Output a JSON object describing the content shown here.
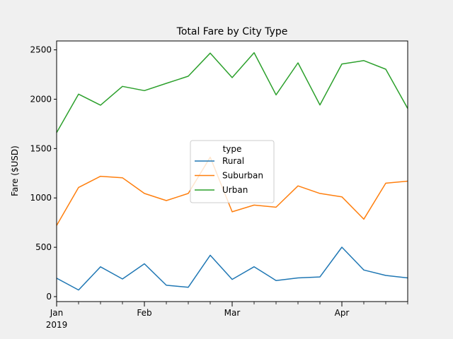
{
  "chart_data": {
    "type": "line",
    "title": "Total Fare by City Type",
    "xlabel": "",
    "ylabel": "Fare ($USD)",
    "x": [
      "2019-01-06",
      "2019-01-13",
      "2019-01-20",
      "2019-01-27",
      "2019-02-03",
      "2019-02-10",
      "2019-02-17",
      "2019-02-24",
      "2019-03-03",
      "2019-03-10",
      "2019-03-17",
      "2019-03-24",
      "2019-03-31",
      "2019-04-07",
      "2019-04-14",
      "2019-04-21",
      "2019-04-28"
    ],
    "x_range": [
      "2019-01-06",
      "2019-04-28"
    ],
    "ylim": [
      -50,
      2590
    ],
    "y_ticks": [
      0,
      500,
      1000,
      1500,
      2000,
      2500
    ],
    "x_ticks": [
      {
        "date": "2019-01-06",
        "label": "Jan",
        "sublabel": "2019"
      },
      {
        "date": "2019-02-03",
        "label": "Feb",
        "sublabel": ""
      },
      {
        "date": "2019-03-03",
        "label": "Mar",
        "sublabel": ""
      },
      {
        "date": "2019-04-07",
        "label": "Apr",
        "sublabel": ""
      }
    ],
    "minor_tick_dates": [
      "2019-01-13",
      "2019-01-20",
      "2019-01-27",
      "2019-02-10",
      "2019-02-17",
      "2019-02-24",
      "2019-03-10",
      "2019-03-17",
      "2019-03-24",
      "2019-03-31",
      "2019-04-14",
      "2019-04-21",
      "2019-04-28"
    ],
    "grid": false,
    "legend": {
      "title": "type",
      "placement": "center"
    },
    "series": [
      {
        "name": "Rural",
        "color": "#1f77b4",
        "values": [
          187,
          67,
          302,
          179,
          333,
          115,
          95,
          419,
          175,
          303,
          163,
          190,
          200,
          501,
          270,
          215,
          190
        ]
      },
      {
        "name": "Suburban",
        "color": "#ff7f0e",
        "values": [
          721,
          1106,
          1219,
          1204,
          1045,
          973,
          1045,
          1413,
          859,
          927,
          906,
          1122,
          1045,
          1011,
          785,
          1149,
          1170
        ]
      },
      {
        "name": "Urban",
        "color": "#2ca02c",
        "values": [
          1661,
          2051,
          1940,
          2130,
          2087,
          2161,
          2233,
          2467,
          2219,
          2471,
          2044,
          2368,
          1942,
          2357,
          2391,
          2304,
          1906
        ]
      }
    ]
  }
}
